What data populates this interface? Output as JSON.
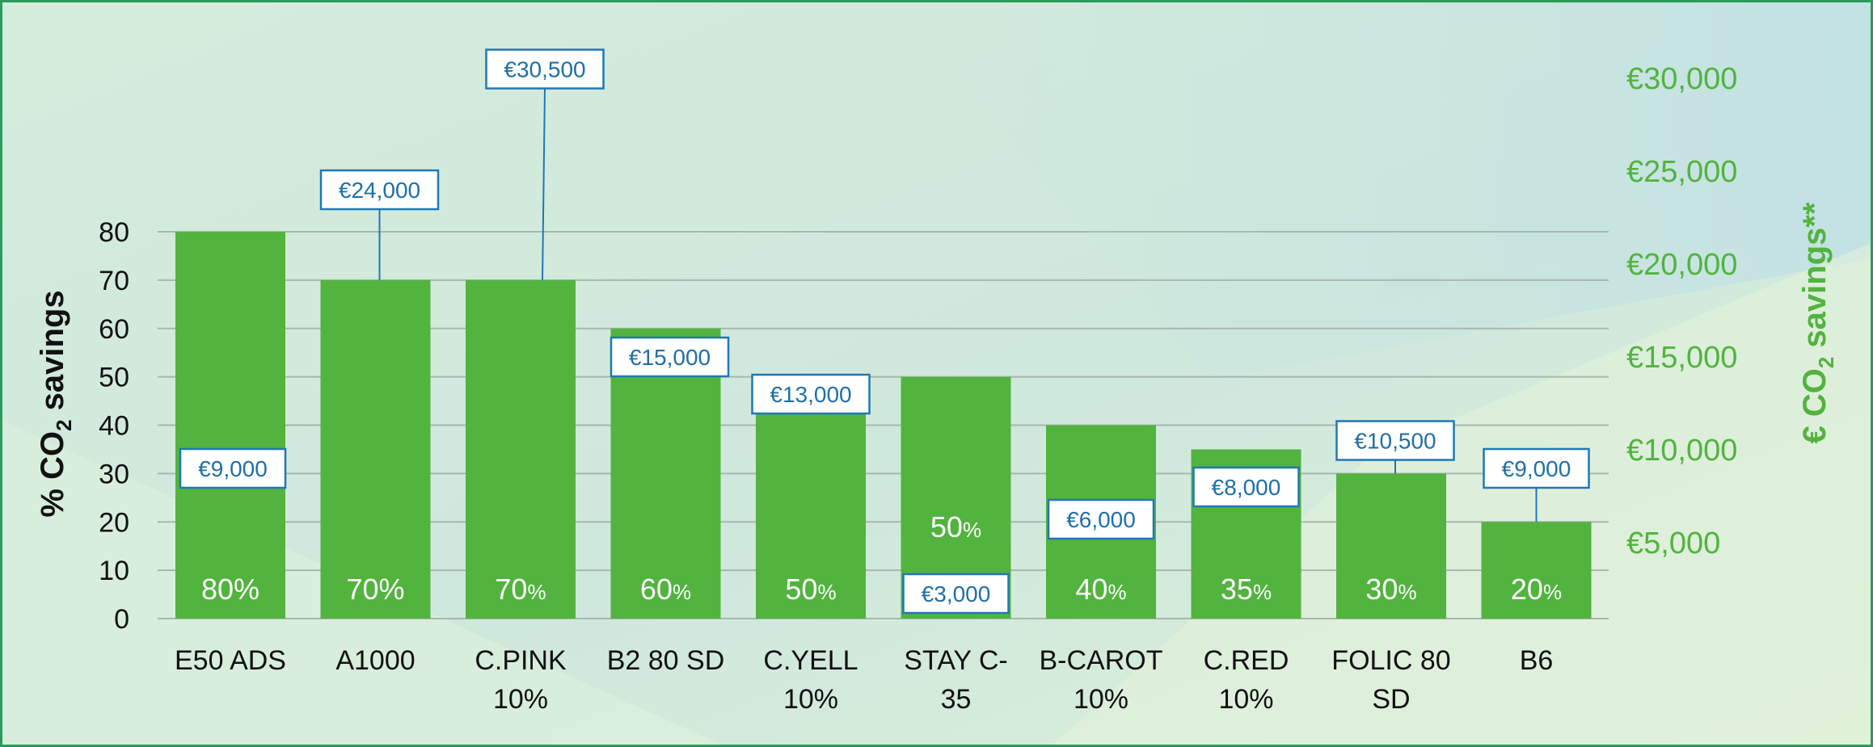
{
  "colors": {
    "bar": "#52b33f",
    "bar_label": "#ffffff",
    "callout_border": "#1f78b4",
    "callout_text": "#1f6fa6",
    "left_axis_text": "#111111",
    "right_axis_text": "#52b33f",
    "grid": "#a9b7ae",
    "frame": "#2c9a5a",
    "background": "#d2ebdd"
  },
  "chart_data": {
    "type": "bar",
    "title": "",
    "ylabel": "% CO2 savings",
    "y2label": "€ CO2 savings**",
    "ylim": [
      0,
      80
    ],
    "yticks": [
      "0",
      "10",
      "20",
      "30",
      "40",
      "50",
      "60",
      "70",
      "80"
    ],
    "y2lim": [
      0,
      30000
    ],
    "y2ticks": [
      "€5,000",
      "€10,000",
      "€15,000",
      "€20,000",
      "€25,000",
      "€30,000"
    ],
    "categories": [
      [
        "E50 ADS"
      ],
      [
        "A1000"
      ],
      [
        "C.PINK",
        "10%"
      ],
      [
        "B2 80 SD"
      ],
      [
        "C.YELL",
        "10%"
      ],
      [
        "STAY C-",
        "35"
      ],
      [
        "B-CAROT",
        "10%"
      ],
      [
        "C.RED",
        "10%"
      ],
      [
        "FOLIC 80",
        "SD"
      ],
      [
        "B6"
      ]
    ],
    "series": [
      {
        "name": "% CO2 savings",
        "values": [
          80,
          70,
          70,
          60,
          50,
          50,
          40,
          35,
          30,
          20
        ],
        "labels": [
          "80%",
          "70%",
          "70%",
          "60%",
          "50%",
          "50%",
          "40%",
          "35%",
          "30%",
          "20%"
        ]
      },
      {
        "name": "€ CO2 savings",
        "values": [
          9000,
          24000,
          30500,
          15000,
          13000,
          3000,
          6000,
          8000,
          10500,
          9000
        ],
        "labels": [
          "€9,000",
          "€24,000",
          "€30,500",
          "€15,000",
          "€13,000",
          "€3,000",
          "€6,000",
          "€8,000",
          "€10,500",
          "€9,000"
        ]
      }
    ],
    "grid": true
  }
}
